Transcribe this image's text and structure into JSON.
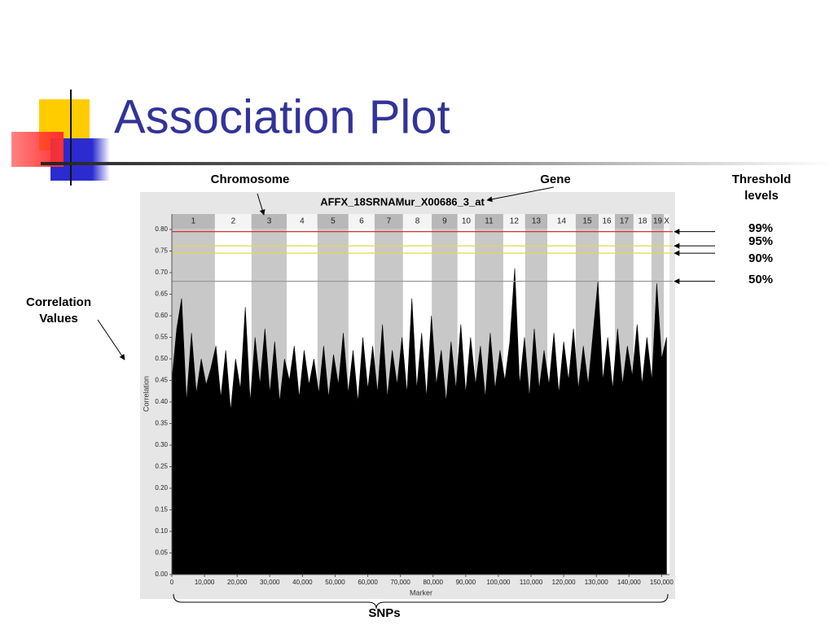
{
  "slide": {
    "title": "Association Plot"
  },
  "annotations": {
    "chromosome": "Chromosome",
    "gene": "Gene",
    "threshold_1": "Threshold",
    "threshold_2": "levels",
    "correlation_1": "Correlation",
    "correlation_2": "Values",
    "snps": "SNPs"
  },
  "chart_data": {
    "type": "area",
    "title": "AFFX_18SRNAMur_X00686_3_at",
    "x_label": "Marker",
    "y_label": "Correlation",
    "color": "#000000",
    "xlim": [
      0,
      152400
    ],
    "ylim": [
      0,
      0.8
    ],
    "xticks": [
      0,
      {
        "value": 10000,
        "label": "10,000"
      },
      {
        "value": 20000,
        "label": "20,000"
      },
      {
        "value": 30000,
        "label": "30,000"
      },
      {
        "value": 40000,
        "label": "40,000"
      },
      {
        "value": 50000,
        "label": "50,000"
      },
      {
        "value": 60000,
        "label": "60,000"
      },
      {
        "value": 70000,
        "label": "70,000"
      },
      {
        "value": 80000,
        "label": "80,000"
      },
      {
        "value": 90000,
        "label": "90,000"
      },
      {
        "value": 100000,
        "label": "100,000"
      },
      {
        "value": 110000,
        "label": "110,000"
      },
      {
        "value": 120000,
        "label": "120,000"
      },
      {
        "value": 130000,
        "label": "130,000"
      },
      {
        "value": 140000,
        "label": "140,000"
      },
      {
        "value": 150000,
        "label": "150,000"
      }
    ],
    "yticks": [
      {
        "value": 0,
        "label": "0.00"
      },
      {
        "value": 0.05,
        "label": "0.05"
      },
      {
        "value": 0.1,
        "label": "0.10"
      },
      {
        "value": 0.15,
        "label": "0.15"
      },
      {
        "value": 0.2,
        "label": "0.20"
      },
      {
        "value": 0.25,
        "label": "0.25"
      },
      {
        "value": 0.3,
        "label": "0.30"
      },
      {
        "value": 0.35,
        "label": "0.35"
      },
      {
        "value": 0.4,
        "label": "0.40"
      },
      {
        "value": 0.45,
        "label": "0.45"
      },
      {
        "value": 0.5,
        "label": "0.50"
      },
      {
        "value": 0.55,
        "label": "0.55"
      },
      {
        "value": 0.6,
        "label": "0.60"
      },
      {
        "value": 0.65,
        "label": "0.65"
      },
      {
        "value": 0.7,
        "label": "0.70"
      },
      {
        "value": 0.75,
        "label": "0.75"
      },
      {
        "value": 0.8,
        "label": "0.80"
      }
    ],
    "chromosomes": {
      "labels": [
        "1",
        "2",
        "3",
        "4",
        "5",
        "6",
        "7",
        "8",
        "9",
        "10",
        "11",
        "12",
        "13",
        "14",
        "15",
        "16",
        "17",
        "18",
        "19",
        "X"
      ],
      "bounds": [
        0,
        13200,
        24400,
        35200,
        44600,
        54100,
        62100,
        70800,
        79600,
        87500,
        92800,
        101500,
        108200,
        115000,
        123700,
        130700,
        135700,
        141400,
        146900,
        150700,
        152400
      ]
    },
    "thresholds": [
      {
        "name": "99%",
        "value": 0.795,
        "color": "#cc3333"
      },
      {
        "name": "95%",
        "value": 0.762,
        "color": "#e6d84a"
      },
      {
        "name": "90%",
        "value": 0.745,
        "color": "#e6d84a"
      },
      {
        "name": "50%",
        "value": 0.68,
        "color": "#999999"
      }
    ],
    "x": [
      0,
      1500,
      3000,
      4500,
      6000,
      7500,
      9000,
      10500,
      12000,
      13500,
      15000,
      16500,
      18000,
      19500,
      21000,
      22500,
      24000,
      25500,
      27000,
      28500,
      30000,
      31500,
      33000,
      34500,
      36000,
      37500,
      39000,
      40500,
      42000,
      43500,
      45000,
      46500,
      48000,
      49500,
      51000,
      52500,
      54000,
      55500,
      57000,
      58500,
      60000,
      61500,
      63000,
      64500,
      66000,
      67500,
      69000,
      70500,
      72000,
      73500,
      75000,
      76500,
      78000,
      79500,
      81000,
      82500,
      84000,
      85500,
      87000,
      88500,
      90000,
      91500,
      93000,
      94500,
      96000,
      97500,
      99000,
      100500,
      102000,
      103500,
      105000,
      106500,
      108000,
      109500,
      111000,
      112500,
      114000,
      115500,
      117000,
      118500,
      120000,
      121500,
      123000,
      124500,
      126000,
      127500,
      129000,
      130500,
      132000,
      133500,
      135000,
      136500,
      138000,
      139500,
      141000,
      142500,
      144000,
      145500,
      147000,
      148500,
      150000,
      151500
    ],
    "values": [
      0.45,
      0.57,
      0.64,
      0.4,
      0.56,
      0.42,
      0.5,
      0.44,
      0.48,
      0.53,
      0.41,
      0.52,
      0.38,
      0.5,
      0.43,
      0.62,
      0.4,
      0.55,
      0.44,
      0.57,
      0.42,
      0.54,
      0.4,
      0.5,
      0.45,
      0.53,
      0.41,
      0.52,
      0.44,
      0.5,
      0.42,
      0.53,
      0.41,
      0.51,
      0.44,
      0.56,
      0.42,
      0.52,
      0.4,
      0.55,
      0.43,
      0.53,
      0.42,
      0.58,
      0.41,
      0.52,
      0.44,
      0.55,
      0.42,
      0.64,
      0.43,
      0.56,
      0.41,
      0.6,
      0.44,
      0.52,
      0.4,
      0.54,
      0.43,
      0.58,
      0.42,
      0.55,
      0.44,
      0.53,
      0.41,
      0.56,
      0.43,
      0.52,
      0.45,
      0.54,
      0.71,
      0.44,
      0.55,
      0.41,
      0.57,
      0.43,
      0.52,
      0.44,
      0.56,
      0.42,
      0.54,
      0.45,
      0.57,
      0.43,
      0.53,
      0.44,
      0.56,
      0.68,
      0.45,
      0.55,
      0.43,
      0.57,
      0.44,
      0.53,
      0.46,
      0.58,
      0.44,
      0.55,
      0.45,
      0.675,
      0.5,
      0.55
    ]
  }
}
